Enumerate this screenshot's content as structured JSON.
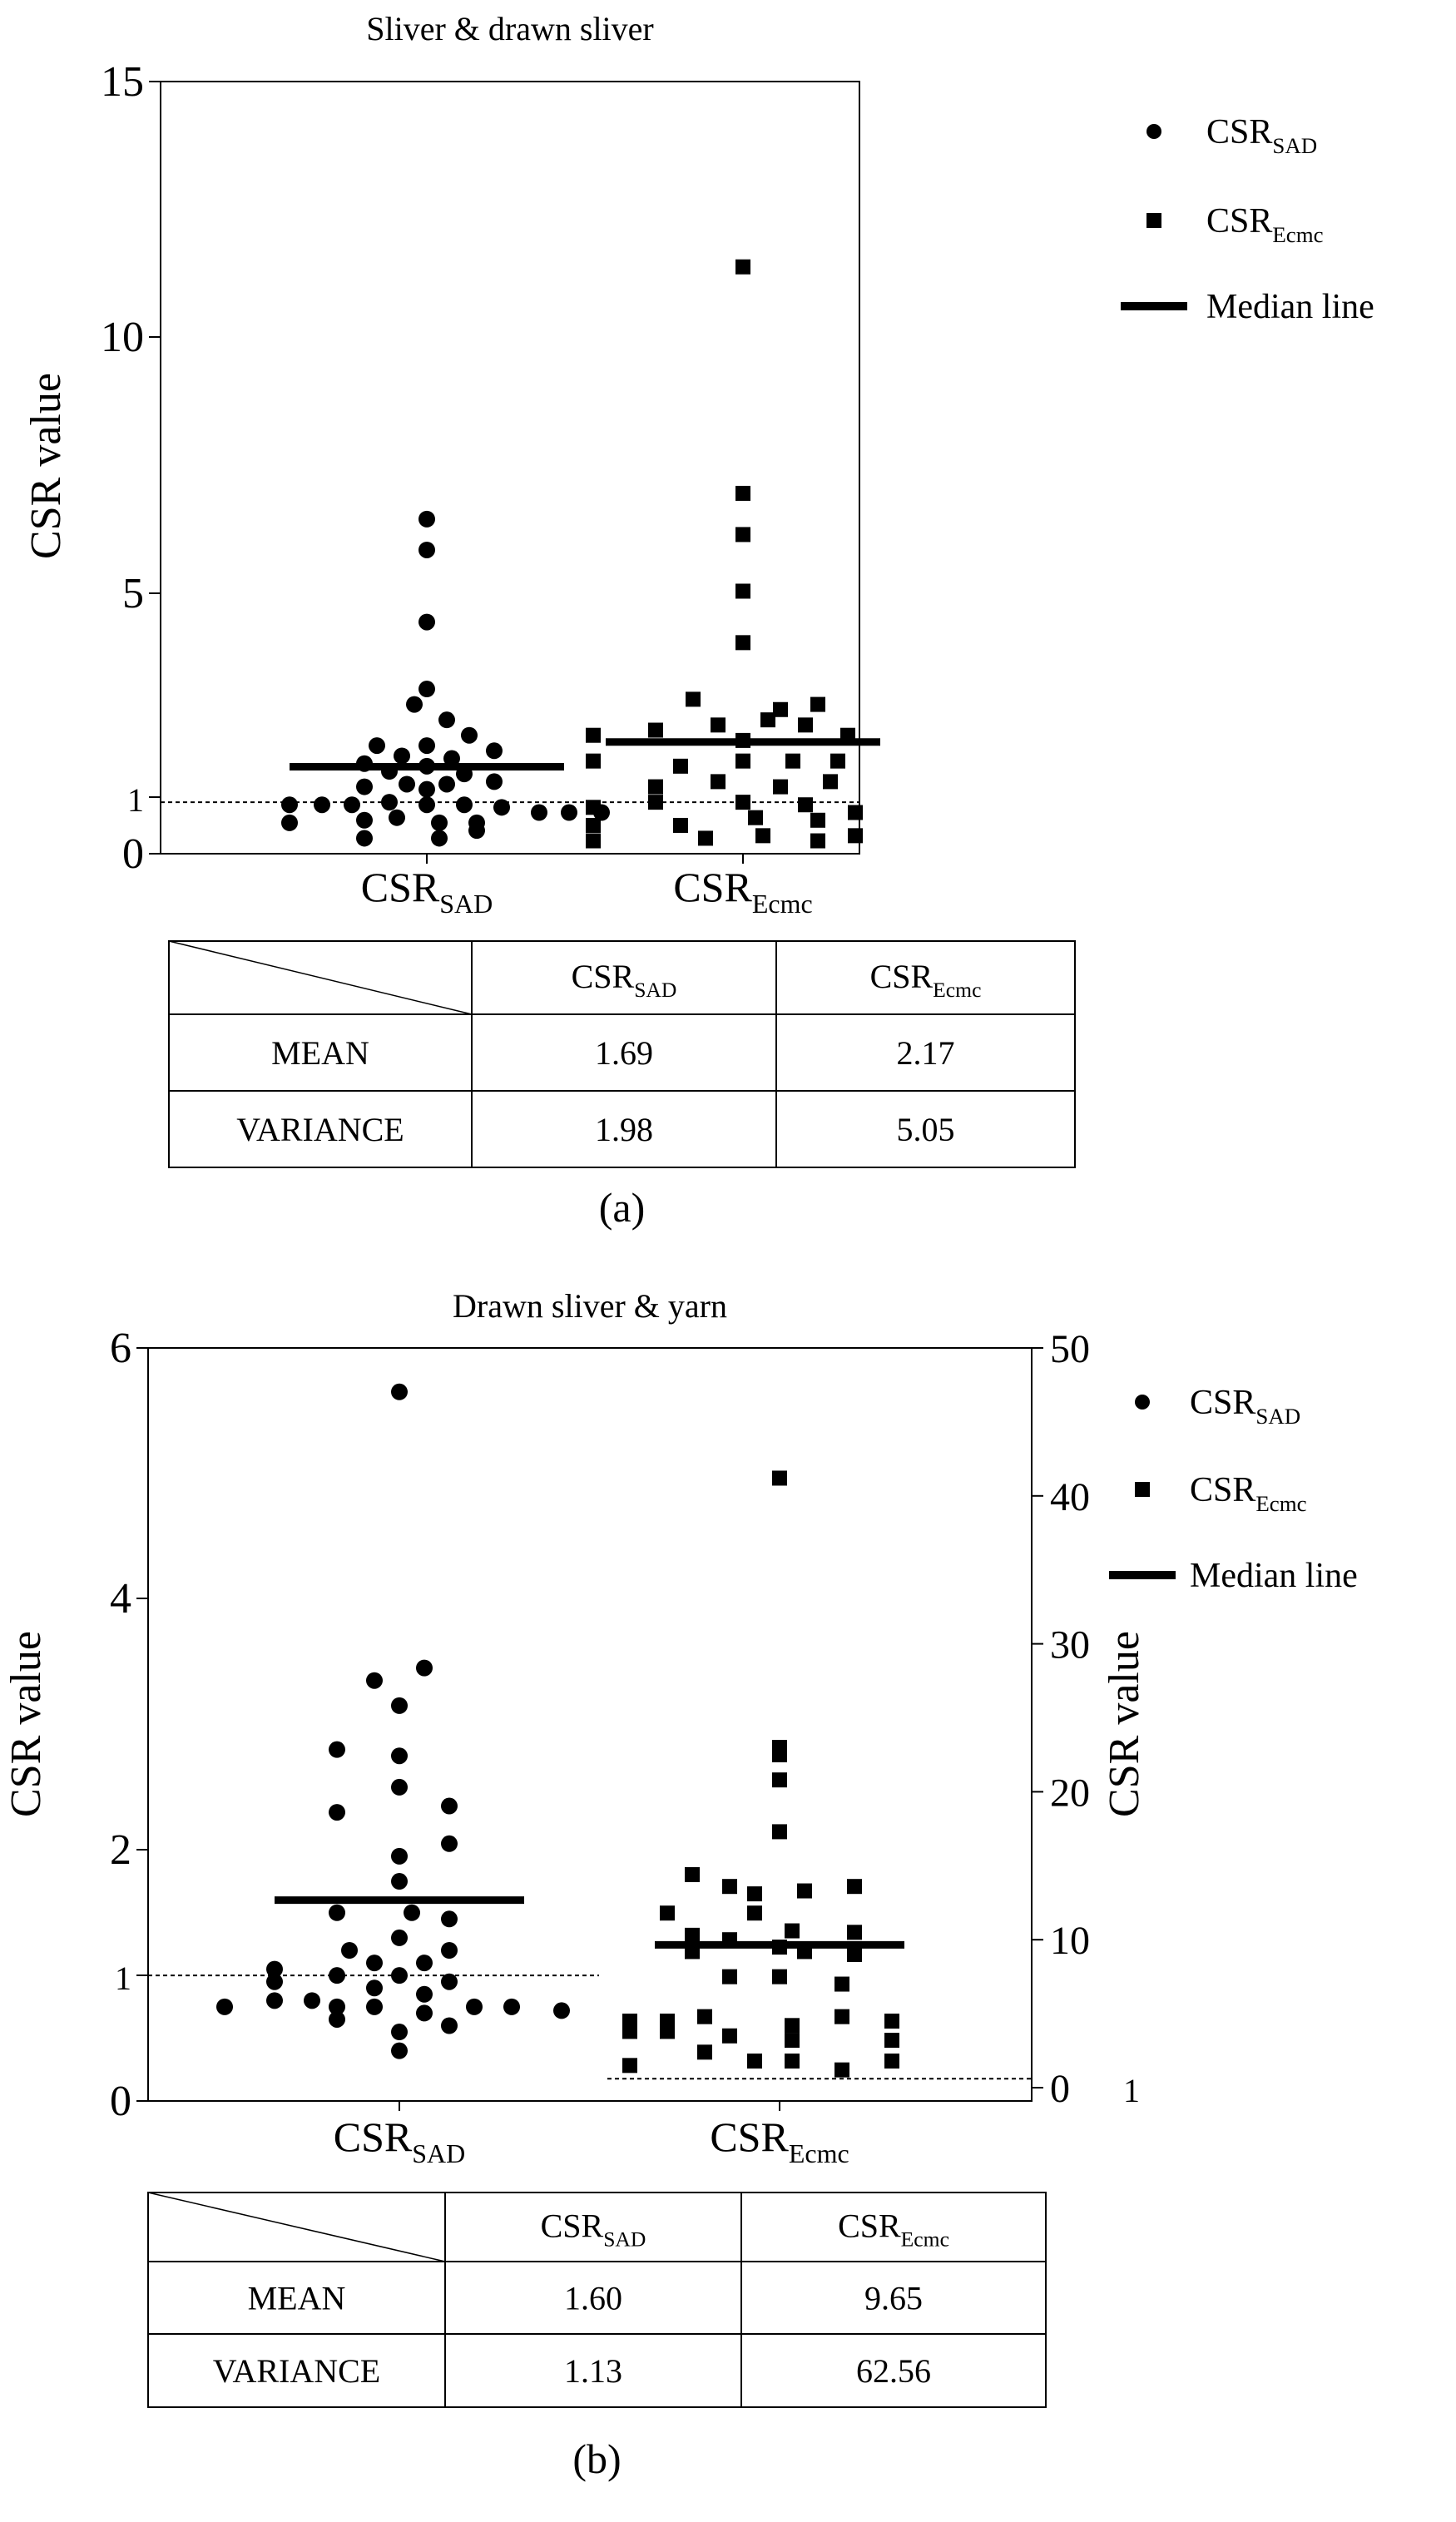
{
  "chart_data": [
    {
      "panel": "a",
      "type": "scatter",
      "title": "Sliver & drawn sliver",
      "ylabel": "CSR value",
      "ylim": [
        0,
        15
      ],
      "yticks": [
        "15",
        "10",
        "5",
        "1",
        "0"
      ],
      "categories": [
        {
          "main": "CSR",
          "sub": "SAD"
        },
        {
          "main": "CSR",
          "sub": "Ecmc"
        }
      ],
      "reference_line": 1,
      "series": [
        {
          "name": {
            "main": "CSR",
            "sub": "SAD"
          },
          "marker": "circle",
          "category": 0,
          "median": 1.69,
          "points": [
            {
              "x": 0.0,
              "y": 6.5
            },
            {
              "x": 0.0,
              "y": 5.9
            },
            {
              "x": 0.0,
              "y": 4.5
            },
            {
              "x": 0.0,
              "y": 3.2
            },
            {
              "x": -0.05,
              "y": 2.9
            },
            {
              "x": 0.08,
              "y": 2.6
            },
            {
              "x": 0.17,
              "y": 2.3
            },
            {
              "x": -0.2,
              "y": 2.1
            },
            {
              "x": 0.0,
              "y": 2.1
            },
            {
              "x": 0.27,
              "y": 2.0
            },
            {
              "x": -0.1,
              "y": 1.9
            },
            {
              "x": 0.1,
              "y": 1.85
            },
            {
              "x": -0.25,
              "y": 1.75
            },
            {
              "x": 0.0,
              "y": 1.7
            },
            {
              "x": -0.15,
              "y": 1.6
            },
            {
              "x": 0.15,
              "y": 1.55
            },
            {
              "x": -0.08,
              "y": 1.35
            },
            {
              "x": 0.08,
              "y": 1.35
            },
            {
              "x": 0.27,
              "y": 1.4
            },
            {
              "x": -0.25,
              "y": 1.3
            },
            {
              "x": 0.0,
              "y": 1.25
            },
            {
              "x": -0.55,
              "y": 0.95
            },
            {
              "x": -0.42,
              "y": 0.95
            },
            {
              "x": -0.3,
              "y": 0.95
            },
            {
              "x": -0.15,
              "y": 1.0
            },
            {
              "x": 0.0,
              "y": 0.95
            },
            {
              "x": 0.15,
              "y": 0.95
            },
            {
              "x": 0.3,
              "y": 0.9
            },
            {
              "x": 0.45,
              "y": 0.8
            },
            {
              "x": 0.57,
              "y": 0.8
            },
            {
              "x": 0.7,
              "y": 0.8
            },
            {
              "x": -0.55,
              "y": 0.6
            },
            {
              "x": -0.25,
              "y": 0.65
            },
            {
              "x": -0.12,
              "y": 0.7
            },
            {
              "x": 0.05,
              "y": 0.6
            },
            {
              "x": 0.2,
              "y": 0.6
            },
            {
              "x": -0.25,
              "y": 0.3
            },
            {
              "x": 0.05,
              "y": 0.3
            },
            {
              "x": 0.2,
              "y": 0.45
            }
          ]
        },
        {
          "name": {
            "main": "CSR",
            "sub": "Ecmc"
          },
          "marker": "square",
          "category": 1,
          "median": 2.17,
          "points": [
            {
              "x": 0.0,
              "y": 11.4
            },
            {
              "x": 0.0,
              "y": 7.0
            },
            {
              "x": 0.0,
              "y": 6.2
            },
            {
              "x": 0.0,
              "y": 5.1
            },
            {
              "x": 0.0,
              "y": 4.1
            },
            {
              "x": -0.2,
              "y": 3.0
            },
            {
              "x": 0.15,
              "y": 2.8
            },
            {
              "x": 0.3,
              "y": 2.9
            },
            {
              "x": 0.1,
              "y": 2.6
            },
            {
              "x": -0.35,
              "y": 2.4
            },
            {
              "x": -0.1,
              "y": 2.5
            },
            {
              "x": 0.25,
              "y": 2.5
            },
            {
              "x": 0.42,
              "y": 2.3
            },
            {
              "x": -0.6,
              "y": 2.3
            },
            {
              "x": 0.0,
              "y": 2.2
            },
            {
              "x": -0.6,
              "y": 1.8
            },
            {
              "x": -0.25,
              "y": 1.7
            },
            {
              "x": 0.0,
              "y": 1.8
            },
            {
              "x": 0.2,
              "y": 1.8
            },
            {
              "x": 0.38,
              "y": 1.8
            },
            {
              "x": -0.35,
              "y": 1.3
            },
            {
              "x": -0.1,
              "y": 1.4
            },
            {
              "x": 0.15,
              "y": 1.3
            },
            {
              "x": 0.35,
              "y": 1.4
            },
            {
              "x": -0.35,
              "y": 1.0
            },
            {
              "x": 0.0,
              "y": 1.0
            },
            {
              "x": 0.25,
              "y": 0.95
            },
            {
              "x": -0.6,
              "y": 0.9
            },
            {
              "x": -0.6,
              "y": 0.55
            },
            {
              "x": -0.25,
              "y": 0.55
            },
            {
              "x": 0.05,
              "y": 0.7
            },
            {
              "x": 0.3,
              "y": 0.65
            },
            {
              "x": 0.45,
              "y": 0.8
            },
            {
              "x": -0.6,
              "y": 0.25
            },
            {
              "x": -0.15,
              "y": 0.3
            },
            {
              "x": 0.08,
              "y": 0.35
            },
            {
              "x": 0.3,
              "y": 0.25
            },
            {
              "x": 0.45,
              "y": 0.35
            }
          ]
        }
      ],
      "legend": {
        "position": "right",
        "items": [
          {
            "marker": "circle",
            "label": {
              "main": "CSR",
              "sub": "SAD"
            }
          },
          {
            "marker": "square",
            "label": {
              "main": "CSR",
              "sub": "Ecmc"
            }
          },
          {
            "marker": "line",
            "label": "Median line"
          }
        ]
      },
      "table": {
        "headers": [
          {
            "main": "CSR",
            "sub": "SAD"
          },
          {
            "main": "CSR",
            "sub": "Ecmc"
          }
        ],
        "rows": [
          {
            "label": "MEAN",
            "values": [
              "1.69",
              "2.17"
            ]
          },
          {
            "label": "VARIANCE",
            "values": [
              "1.98",
              "5.05"
            ]
          }
        ]
      },
      "caption": "(a)"
    },
    {
      "panel": "b",
      "type": "scatter",
      "title": "Drawn sliver & yarn",
      "ylabel": "CSR value",
      "ylim": [
        0,
        6
      ],
      "yticks": [
        "6",
        "4",
        "2",
        "1",
        "0"
      ],
      "y2label": "CSR value",
      "y2lim": [
        0,
        50
      ],
      "y2ticks": [
        "50",
        "40",
        "30",
        "20",
        "10",
        "0"
      ],
      "y2_extra_label": "1",
      "categories": [
        {
          "main": "CSR",
          "sub": "SAD"
        },
        {
          "main": "CSR",
          "sub": "Ecmc"
        }
      ],
      "reference_line_left": 1,
      "reference_line_right": 1,
      "series": [
        {
          "name": {
            "main": "CSR",
            "sub": "SAD"
          },
          "marker": "circle",
          "axis": "left",
          "category": 0,
          "median": 1.6,
          "points": [
            {
              "x": 0.0,
              "y": 5.65
            },
            {
              "x": 0.1,
              "y": 3.45
            },
            {
              "x": -0.1,
              "y": 3.35
            },
            {
              "x": 0.0,
              "y": 3.15
            },
            {
              "x": -0.25,
              "y": 2.8
            },
            {
              "x": 0.0,
              "y": 2.75
            },
            {
              "x": 0.0,
              "y": 2.5
            },
            {
              "x": 0.2,
              "y": 2.35
            },
            {
              "x": -0.25,
              "y": 2.3
            },
            {
              "x": 0.2,
              "y": 2.05
            },
            {
              "x": 0.0,
              "y": 1.95
            },
            {
              "x": 0.0,
              "y": 1.75
            },
            {
              "x": -0.25,
              "y": 1.5
            },
            {
              "x": 0.05,
              "y": 1.5
            },
            {
              "x": 0.2,
              "y": 1.45
            },
            {
              "x": 0.0,
              "y": 1.3
            },
            {
              "x": -0.2,
              "y": 1.2
            },
            {
              "x": 0.2,
              "y": 1.2
            },
            {
              "x": -0.1,
              "y": 1.1
            },
            {
              "x": 0.1,
              "y": 1.1
            },
            {
              "x": -0.5,
              "y": 1.05
            },
            {
              "x": -0.25,
              "y": 1.0
            },
            {
              "x": 0.0,
              "y": 1.0
            },
            {
              "x": 0.2,
              "y": 0.95
            },
            {
              "x": -0.5,
              "y": 0.95
            },
            {
              "x": -0.1,
              "y": 0.9
            },
            {
              "x": 0.1,
              "y": 0.85
            },
            {
              "x": -0.5,
              "y": 0.8
            },
            {
              "x": -0.35,
              "y": 0.8
            },
            {
              "x": -0.25,
              "y": 0.75
            },
            {
              "x": -0.1,
              "y": 0.75
            },
            {
              "x": 0.1,
              "y": 0.7
            },
            {
              "x": 0.3,
              "y": 0.75
            },
            {
              "x": 0.45,
              "y": 0.75
            },
            {
              "x": 0.65,
              "y": 0.72
            },
            {
              "x": -0.7,
              "y": 0.75
            },
            {
              "x": -0.25,
              "y": 0.65
            },
            {
              "x": 0.0,
              "y": 0.55
            },
            {
              "x": 0.2,
              "y": 0.6
            },
            {
              "x": 0.0,
              "y": 0.4
            }
          ]
        },
        {
          "name": {
            "main": "CSR",
            "sub": "Ecmc"
          },
          "marker": "square",
          "axis": "right",
          "category": 1,
          "median": 9.65,
          "points": [
            {
              "x": 0.0,
              "y": 41.2
            },
            {
              "x": 0.0,
              "y": 23.0
            },
            {
              "x": 0.0,
              "y": 22.5
            },
            {
              "x": 0.0,
              "y": 20.8
            },
            {
              "x": 0.0,
              "y": 17.3
            },
            {
              "x": -0.35,
              "y": 14.4
            },
            {
              "x": -0.2,
              "y": 13.6
            },
            {
              "x": -0.1,
              "y": 13.1
            },
            {
              "x": 0.1,
              "y": 13.3
            },
            {
              "x": 0.3,
              "y": 13.6
            },
            {
              "x": -0.45,
              "y": 11.8
            },
            {
              "x": -0.1,
              "y": 11.8
            },
            {
              "x": 0.05,
              "y": 10.6
            },
            {
              "x": -0.35,
              "y": 10.3
            },
            {
              "x": -0.2,
              "y": 10.0
            },
            {
              "x": 0.3,
              "y": 10.5
            },
            {
              "x": -0.35,
              "y": 9.2
            },
            {
              "x": 0.0,
              "y": 9.5
            },
            {
              "x": 0.1,
              "y": 9.2
            },
            {
              "x": 0.3,
              "y": 9.0
            },
            {
              "x": -0.2,
              "y": 7.5
            },
            {
              "x": 0.0,
              "y": 7.5
            },
            {
              "x": 0.25,
              "y": 7.0
            },
            {
              "x": -0.6,
              "y": 4.5
            },
            {
              "x": -0.45,
              "y": 4.5
            },
            {
              "x": -0.3,
              "y": 4.8
            },
            {
              "x": 0.05,
              "y": 4.2
            },
            {
              "x": 0.25,
              "y": 4.8
            },
            {
              "x": 0.45,
              "y": 4.5
            },
            {
              "x": -0.6,
              "y": 3.8
            },
            {
              "x": -0.45,
              "y": 3.8
            },
            {
              "x": -0.2,
              "y": 3.5
            },
            {
              "x": 0.05,
              "y": 3.2
            },
            {
              "x": 0.45,
              "y": 3.2
            },
            {
              "x": -0.6,
              "y": 1.5
            },
            {
              "x": -0.3,
              "y": 2.4
            },
            {
              "x": -0.1,
              "y": 1.8
            },
            {
              "x": 0.05,
              "y": 1.8
            },
            {
              "x": 0.25,
              "y": 1.2
            },
            {
              "x": 0.45,
              "y": 1.8
            }
          ]
        }
      ],
      "legend": {
        "position": "right",
        "items": [
          {
            "marker": "circle",
            "label": {
              "main": "CSR",
              "sub": "SAD"
            }
          },
          {
            "marker": "square",
            "label": {
              "main": "CSR",
              "sub": "Ecmc"
            }
          },
          {
            "marker": "line",
            "label": "Median line"
          }
        ]
      },
      "table": {
        "headers": [
          {
            "main": "CSR",
            "sub": "SAD"
          },
          {
            "main": "CSR",
            "sub": "Ecmc"
          }
        ],
        "rows": [
          {
            "label": "MEAN",
            "values": [
              "1.60",
              "9.65"
            ]
          },
          {
            "label": "VARIANCE",
            "values": [
              "1.13",
              "62.56"
            ]
          }
        ]
      },
      "caption": "(b)"
    }
  ]
}
